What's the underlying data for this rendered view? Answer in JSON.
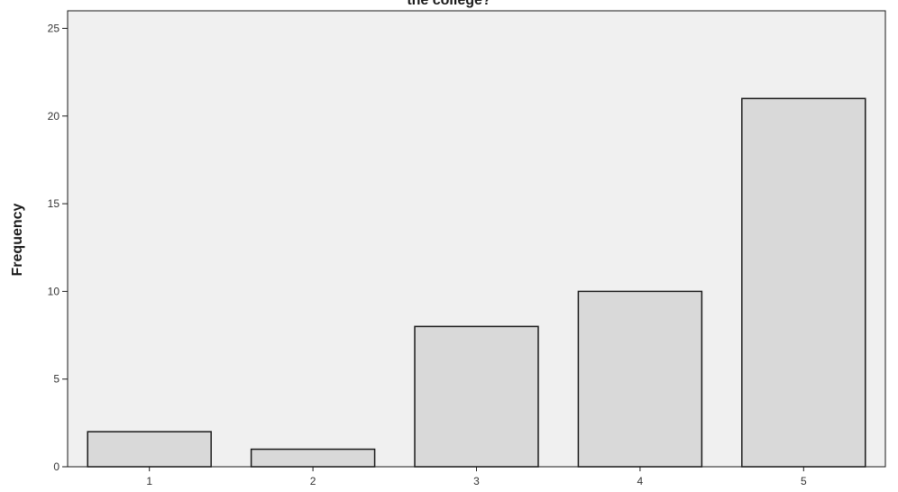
{
  "chart_data": {
    "type": "bar",
    "title": "the college?",
    "xlabel": "",
    "ylabel": "Frequency",
    "categories": [
      "1",
      "2",
      "3",
      "4",
      "5"
    ],
    "values": [
      2,
      1,
      8,
      10,
      21
    ],
    "ylim": [
      0,
      26
    ],
    "yticks": [
      0,
      5,
      10,
      15,
      20,
      25
    ],
    "grid": false,
    "colors": {
      "bar_fill": "#d9d9d9",
      "bar_stroke": "#1a1a1a",
      "plot_bg": "#f0f0f0",
      "axis": "#1a1a1a"
    }
  }
}
